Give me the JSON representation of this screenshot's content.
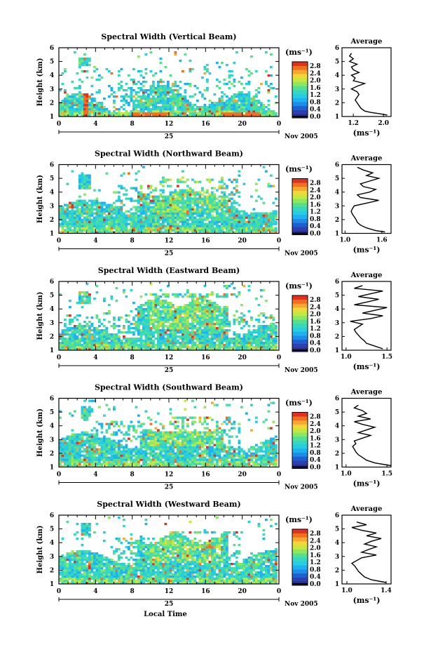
{
  "figure": {
    "time_axis_label": "Local Time",
    "date_day": "25",
    "date_month_year": "Nov 2005"
  },
  "chart_data": [
    {
      "type": "heatmap",
      "title": "Spectral Width (Vertical Beam)",
      "beam": "vertical",
      "ylabel": "Height (km)",
      "ylim": [
        1,
        6
      ],
      "yticks": [
        1,
        2,
        3,
        4,
        5,
        6
      ],
      "xlim": [
        0,
        24
      ],
      "xticks": [
        "0",
        "4",
        "8",
        "12",
        "16",
        "20",
        "0"
      ],
      "colorbar": {
        "label": "(ms⁻¹)",
        "ticks": [
          "2.8",
          "2.4",
          "2.0",
          "1.6",
          "1.2",
          "0.8",
          "0.4",
          "0.0"
        ],
        "range": [
          0.0,
          3.0
        ]
      },
      "average_profile": {
        "title": "Average",
        "xlabel": "(ms⁻¹)",
        "xticks": [
          "1.2",
          "2.0"
        ],
        "xlim": [
          0.9,
          2.2
        ],
        "ylim": [
          1,
          6
        ],
        "yticks": [
          1,
          2,
          3,
          4,
          5,
          6
        ],
        "heights": [
          1.1,
          1.2,
          1.3,
          1.4,
          1.6,
          1.8,
          2.0,
          2.2,
          2.4,
          2.6,
          2.8,
          3.0,
          3.2,
          3.4,
          3.6,
          3.8,
          4.0,
          4.2,
          4.4,
          4.6,
          4.8,
          5.0,
          5.2,
          5.4,
          5.6
        ],
        "values": [
          2.1,
          1.9,
          1.65,
          1.5,
          1.4,
          1.35,
          1.3,
          1.25,
          1.3,
          1.35,
          1.3,
          1.15,
          1.3,
          1.5,
          1.2,
          1.25,
          1.15,
          1.35,
          1.2,
          1.15,
          1.3,
          1.1,
          1.2,
          1.1,
          1.15
        ]
      }
    },
    {
      "type": "heatmap",
      "title": "Spectral Width (Northward Beam)",
      "beam": "northward",
      "ylabel": "Height (km)",
      "ylim": [
        1,
        6
      ],
      "yticks": [
        1,
        2,
        3,
        4,
        5,
        6
      ],
      "xlim": [
        0,
        24
      ],
      "xticks": [
        "0",
        "4",
        "8",
        "12",
        "16",
        "20",
        "0"
      ],
      "colorbar": {
        "label": "(ms⁻¹)",
        "ticks": [
          "2.8",
          "2.4",
          "2.0",
          "1.6",
          "1.2",
          "0.8",
          "0.4",
          "0.0"
        ],
        "range": [
          0.0,
          3.0
        ]
      },
      "average_profile": {
        "title": "Average",
        "xlabel": "(ms⁻¹)",
        "xticks": [
          "1.0",
          "1.6"
        ],
        "xlim": [
          0.95,
          1.75
        ],
        "ylim": [
          1,
          6
        ],
        "yticks": [
          1,
          2,
          3,
          4,
          5,
          6
        ],
        "heights": [
          1.1,
          1.2,
          1.4,
          1.6,
          1.8,
          2.0,
          2.2,
          2.4,
          2.6,
          2.8,
          3.0,
          3.2,
          3.4,
          3.6,
          3.8,
          4.0,
          4.2,
          4.4,
          4.6,
          4.8,
          5.0,
          5.2,
          5.4,
          5.6,
          5.8
        ],
        "values": [
          1.65,
          1.5,
          1.35,
          1.25,
          1.2,
          1.18,
          1.15,
          1.12,
          1.1,
          1.12,
          1.15,
          1.35,
          1.55,
          1.25,
          1.2,
          1.4,
          1.5,
          1.3,
          1.25,
          1.4,
          1.55,
          1.35,
          1.45,
          1.3,
          1.2
        ]
      }
    },
    {
      "type": "heatmap",
      "title": "Spectral Width (Eastward Beam)",
      "beam": "eastward",
      "ylabel": "Height (km)",
      "ylim": [
        1,
        6
      ],
      "yticks": [
        1,
        2,
        3,
        4,
        5,
        6
      ],
      "xlim": [
        0,
        24
      ],
      "xticks": [
        "0",
        "4",
        "8",
        "12",
        "16",
        "20",
        "0"
      ],
      "colorbar": {
        "label": "(ms⁻¹)",
        "ticks": [
          "2.8",
          "2.4",
          "2.0",
          "1.6",
          "1.2",
          "0.8",
          "0.4",
          "0.0"
        ],
        "range": [
          0.0,
          3.0
        ]
      },
      "average_profile": {
        "title": "Average",
        "xlabel": "(ms⁻¹)",
        "xticks": [
          "1.0",
          "1.5"
        ],
        "xlim": [
          0.95,
          1.55
        ],
        "ylim": [
          1,
          6
        ],
        "yticks": [
          1,
          2,
          3,
          4,
          5,
          6
        ],
        "heights": [
          1.1,
          1.3,
          1.5,
          1.7,
          1.9,
          2.1,
          2.3,
          2.5,
          2.7,
          2.9,
          3.1,
          3.3,
          3.5,
          3.7,
          3.9,
          4.1,
          4.3,
          4.5,
          4.7,
          4.9,
          5.1,
          5.3,
          5.5,
          5.7
        ],
        "values": [
          1.45,
          1.35,
          1.25,
          1.22,
          1.18,
          1.15,
          1.12,
          1.1,
          1.15,
          1.2,
          1.05,
          1.3,
          1.45,
          1.2,
          1.35,
          1.5,
          1.1,
          1.25,
          1.4,
          1.15,
          1.3,
          1.45,
          1.1,
          1.2
        ]
      }
    },
    {
      "type": "heatmap",
      "title": "Spectral Width (Southward Beam)",
      "beam": "southward",
      "ylabel": "Height (km)",
      "ylim": [
        1,
        6
      ],
      "yticks": [
        1,
        2,
        3,
        4,
        5,
        6
      ],
      "xlim": [
        0,
        24
      ],
      "xticks": [
        "0",
        "4",
        "8",
        "12",
        "16",
        "20",
        "0"
      ],
      "colorbar": {
        "label": "(ms⁻¹)",
        "ticks": [
          "2.8",
          "2.4",
          "2.0",
          "1.6",
          "1.2",
          "0.8",
          "0.4",
          "0.0"
        ],
        "range": [
          0.0,
          3.0
        ]
      },
      "average_profile": {
        "title": "Average",
        "xlabel": "(ms⁻¹)",
        "xticks": [
          "1.0",
          "1.5"
        ],
        "xlim": [
          0.95,
          1.55
        ],
        "ylim": [
          1,
          6
        ],
        "yticks": [
          1,
          2,
          3,
          4,
          5,
          6
        ],
        "heights": [
          1.1,
          1.3,
          1.5,
          1.7,
          1.9,
          2.1,
          2.3,
          2.5,
          2.7,
          2.9,
          3.1,
          3.3,
          3.5,
          3.7,
          3.9,
          4.1,
          4.3,
          4.5,
          4.7,
          4.9,
          5.1,
          5.3,
          5.5
        ],
        "values": [
          1.55,
          1.35,
          1.25,
          1.2,
          1.15,
          1.12,
          1.1,
          1.08,
          1.12,
          1.1,
          1.2,
          1.3,
          1.15,
          1.25,
          1.35,
          1.2,
          1.1,
          1.3,
          1.15,
          1.25,
          1.2,
          1.1,
          1.15
        ]
      }
    },
    {
      "type": "heatmap",
      "title": "Spectral Width (Westward Beam)",
      "beam": "westward",
      "ylabel": "Height (km)",
      "ylim": [
        1,
        6
      ],
      "yticks": [
        1,
        2,
        3,
        4,
        5,
        6
      ],
      "xlim": [
        0,
        24
      ],
      "xticks": [
        "0",
        "4",
        "8",
        "12",
        "16",
        "20",
        "0"
      ],
      "colorbar": {
        "label": "(ms⁻¹)",
        "ticks": [
          "2.8",
          "2.4",
          "2.0",
          "1.6",
          "1.2",
          "0.8",
          "0.4",
          "0.0"
        ],
        "range": [
          0.0,
          3.0
        ]
      },
      "average_profile": {
        "title": "Average",
        "xlabel": "(ms⁻¹)",
        "xticks": [
          "1.0",
          "1.4"
        ],
        "xlim": [
          0.95,
          1.45
        ],
        "ylim": [
          1,
          6
        ],
        "yticks": [
          1,
          2,
          3,
          4,
          5,
          6
        ],
        "heights": [
          1.1,
          1.3,
          1.5,
          1.7,
          1.9,
          2.1,
          2.3,
          2.5,
          2.7,
          2.9,
          3.1,
          3.3,
          3.5,
          3.7,
          3.9,
          4.1,
          4.3,
          4.5,
          4.7,
          4.9,
          5.1,
          5.3,
          5.5
        ],
        "values": [
          1.4,
          1.25,
          1.18,
          1.15,
          1.12,
          1.1,
          1.08,
          1.05,
          1.1,
          1.15,
          1.3,
          1.15,
          1.22,
          1.3,
          1.18,
          1.25,
          1.35,
          1.2,
          1.3,
          1.15,
          1.05,
          1.2,
          1.1
        ]
      }
    }
  ]
}
